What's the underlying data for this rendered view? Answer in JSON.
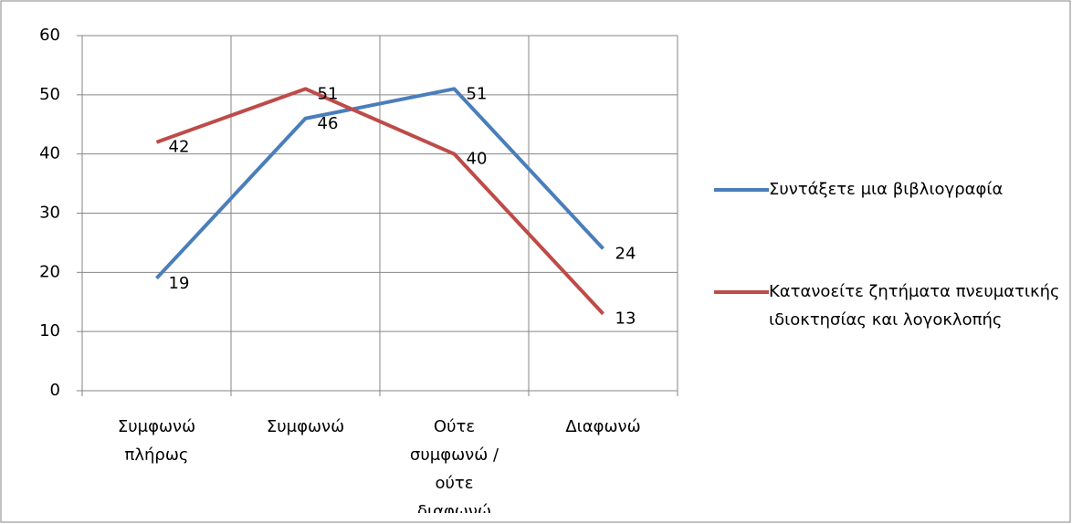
{
  "chart_data": {
    "type": "line",
    "categories": [
      "Συμφωνώ πλήρως",
      "Συμφωνώ",
      "Ούτε συμφωνώ / ούτε διαφωνώ",
      "Διαφωνώ"
    ],
    "series": [
      {
        "name": "Συντάξετε μια βιβλιογραφία",
        "color": "#4a7ebb",
        "values": [
          19,
          46,
          51,
          24
        ]
      },
      {
        "name": "Κατανοείτε ζητήματα πνευματικής ιδιοκτησίας και λογοκλοπής",
        "color": "#be4b48",
        "values": [
          42,
          51,
          40,
          13
        ]
      }
    ],
    "ylim": [
      0,
      60
    ],
    "yticks": [
      0,
      10,
      20,
      30,
      40,
      50,
      60
    ],
    "grid": true,
    "legend": "right"
  }
}
